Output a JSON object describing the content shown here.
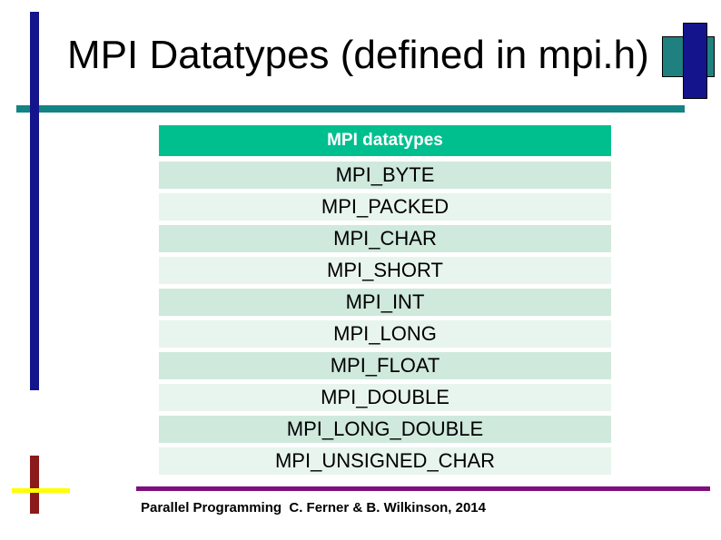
{
  "slide": {
    "title": "MPI Datatypes (defined in mpi.h)",
    "footer": "Parallel Programming  C. Ferner & B. Wilkinson, 2014"
  },
  "table": {
    "header": "MPI datatypes",
    "rows": [
      "MPI_BYTE",
      "MPI_PACKED",
      "MPI_CHAR",
      "MPI_SHORT",
      "MPI_INT",
      "MPI_LONG",
      "MPI_FLOAT",
      "MPI_DOUBLE",
      "MPI_LONG_DOUBLE",
      "MPI_UNSIGNED_CHAR"
    ]
  },
  "colors": {
    "title_text": "#000000",
    "header_bg": "#00BF8F",
    "header_text": "#FFFFFF",
    "row_dark": "#CFE9DD",
    "row_light": "#E8F5EE",
    "row_text": "#000000",
    "teal_rule": "#148383",
    "navy_bar": "#14148C",
    "teal_square": "#1F8080",
    "maroon_bar": "#8B1A1A",
    "yellow_rule": "#FFFF00",
    "purple_rule": "#7D107D"
  }
}
